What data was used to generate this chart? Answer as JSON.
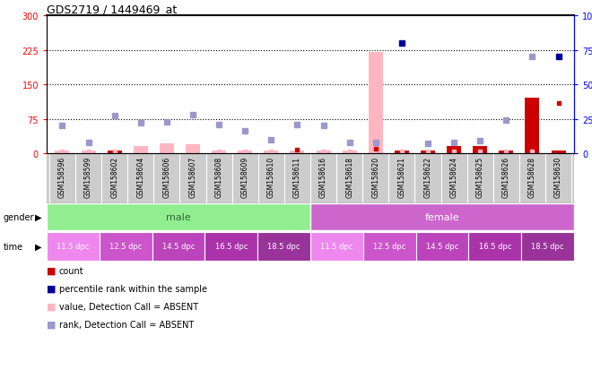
{
  "title": "GDS2719 / 1449469_at",
  "samples": [
    "GSM158596",
    "GSM158599",
    "GSM158602",
    "GSM158604",
    "GSM158606",
    "GSM158607",
    "GSM158608",
    "GSM158609",
    "GSM158610",
    "GSM158611",
    "GSM158616",
    "GSM158618",
    "GSM158620",
    "GSM158621",
    "GSM158622",
    "GSM158624",
    "GSM158625",
    "GSM158626",
    "GSM158628",
    "GSM158630"
  ],
  "bar_values": [
    5,
    5,
    5,
    15,
    22,
    20,
    5,
    5,
    5,
    5,
    5,
    5,
    220,
    5,
    5,
    15,
    15,
    5,
    120,
    5
  ],
  "bar_absent": [
    true,
    true,
    false,
    true,
    true,
    true,
    true,
    true,
    true,
    true,
    true,
    true,
    true,
    false,
    false,
    false,
    false,
    false,
    false,
    false
  ],
  "rank_values": [
    20,
    8,
    27,
    22,
    23,
    28,
    21,
    16,
    10,
    21,
    20,
    8,
    8,
    80,
    7,
    8,
    9,
    24,
    70,
    70
  ],
  "rank_absent": [
    true,
    true,
    true,
    true,
    true,
    true,
    true,
    true,
    true,
    true,
    true,
    true,
    true,
    false,
    true,
    true,
    true,
    true,
    true,
    false
  ],
  "count_values": [
    3,
    3,
    3,
    3,
    3,
    3,
    3,
    3,
    3,
    8,
    3,
    3,
    10,
    3,
    3,
    3,
    3,
    3,
    3,
    110
  ],
  "count_absent": [
    true,
    true,
    true,
    true,
    true,
    true,
    true,
    true,
    true,
    false,
    true,
    true,
    false,
    true,
    true,
    true,
    true,
    true,
    true,
    false
  ],
  "ylim_left": [
    0,
    300
  ],
  "ylim_right": [
    0,
    100
  ],
  "yticks_left": [
    0,
    75,
    150,
    225,
    300
  ],
  "yticks_right": [
    0,
    25,
    50,
    75,
    100
  ],
  "bar_absent_color": "#ffb6c1",
  "bar_present_color": "#cc0000",
  "rank_absent_color": "#9999cc",
  "rank_present_color": "#000099",
  "count_absent_color": "#ffb6c1",
  "count_present_color": "#cc0000",
  "gender_labels": [
    "male",
    "female"
  ],
  "gender_colors": [
    "#90ee90",
    "#cc66cc"
  ],
  "time_labels": [
    "11.5 dpc",
    "12.5 dpc",
    "14.5 dpc",
    "16.5 dpc",
    "18.5 dpc"
  ],
  "time_colors": [
    "#ee88ee",
    "#dd66dd",
    "#cc44cc",
    "#bb33bb",
    "#aa22aa"
  ],
  "bg_gray": "#cccccc",
  "legend_items": [
    {
      "color": "#cc0000",
      "label": "count"
    },
    {
      "color": "#000099",
      "label": "percentile rank within the sample"
    },
    {
      "color": "#ffb6c1",
      "label": "value, Detection Call = ABSENT"
    },
    {
      "color": "#9999cc",
      "label": "rank, Detection Call = ABSENT"
    }
  ]
}
